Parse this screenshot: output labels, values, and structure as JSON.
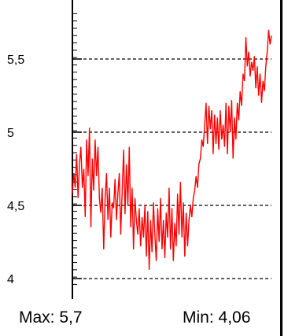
{
  "chart_data": {
    "type": "line",
    "title": "",
    "xlabel": "",
    "ylabel": "",
    "ylim": [
      3.96,
      5.85
    ],
    "yticks": [
      4,
      4.5,
      5,
      5.5
    ],
    "ytick_labels": [
      "4",
      "4,5",
      "5",
      "5,5"
    ],
    "grid": "horizontal dashed",
    "series_color": "#ff0000",
    "series": [
      {
        "values": [
          4.58,
          4.72,
          4.62,
          4.85,
          4.55,
          4.78,
          4.9,
          4.62,
          4.75,
          4.42,
          4.95,
          4.7,
          5.03,
          4.35,
          4.82,
          4.6,
          4.95,
          4.7,
          4.9,
          4.55,
          4.45,
          4.62,
          4.2,
          4.55,
          4.72,
          4.4,
          4.62,
          4.28,
          4.52,
          4.48,
          4.68,
          4.4,
          4.58,
          4.72,
          4.3,
          4.6,
          4.88,
          4.44,
          4.78,
          4.5,
          4.9,
          4.35,
          4.62,
          4.2,
          4.55,
          4.4,
          4.3,
          4.48,
          4.22,
          4.42,
          4.28,
          4.5,
          4.15,
          4.46,
          4.06,
          4.4,
          4.18,
          4.52,
          4.3,
          4.12,
          4.48,
          4.25,
          4.55,
          4.2,
          4.4,
          4.14,
          4.45,
          4.28,
          4.62,
          4.2,
          4.48,
          4.12,
          4.38,
          4.22,
          4.58,
          4.3,
          4.66,
          4.28,
          4.52,
          4.15,
          4.45,
          4.22,
          4.4,
          4.5,
          4.42,
          4.55,
          4.6,
          4.7,
          4.62,
          4.78,
          4.82,
          4.95,
          4.9,
          5.05,
          5.2,
          4.92,
          5.18,
          5.02,
          5.15,
          4.85,
          5.12,
          4.92,
          5.1,
          4.88,
          5.15,
          4.95,
          5.05,
          4.9,
          5.2,
          4.85,
          5.18,
          5.0,
          5.22,
          4.82,
          5.1,
          4.95,
          5.2,
          5.08,
          5.28,
          5.18,
          5.4,
          5.35,
          5.65,
          5.45,
          5.55,
          5.38,
          5.48,
          5.42,
          5.52,
          5.3,
          5.45,
          5.25,
          5.4,
          5.2,
          5.35,
          5.28,
          5.45,
          5.55,
          5.7,
          5.6,
          5.66
        ]
      }
    ],
    "stats": {
      "max_label": "Max:",
      "max_value": "5,7",
      "min_label": "Min:",
      "min_value": "4,06"
    }
  }
}
